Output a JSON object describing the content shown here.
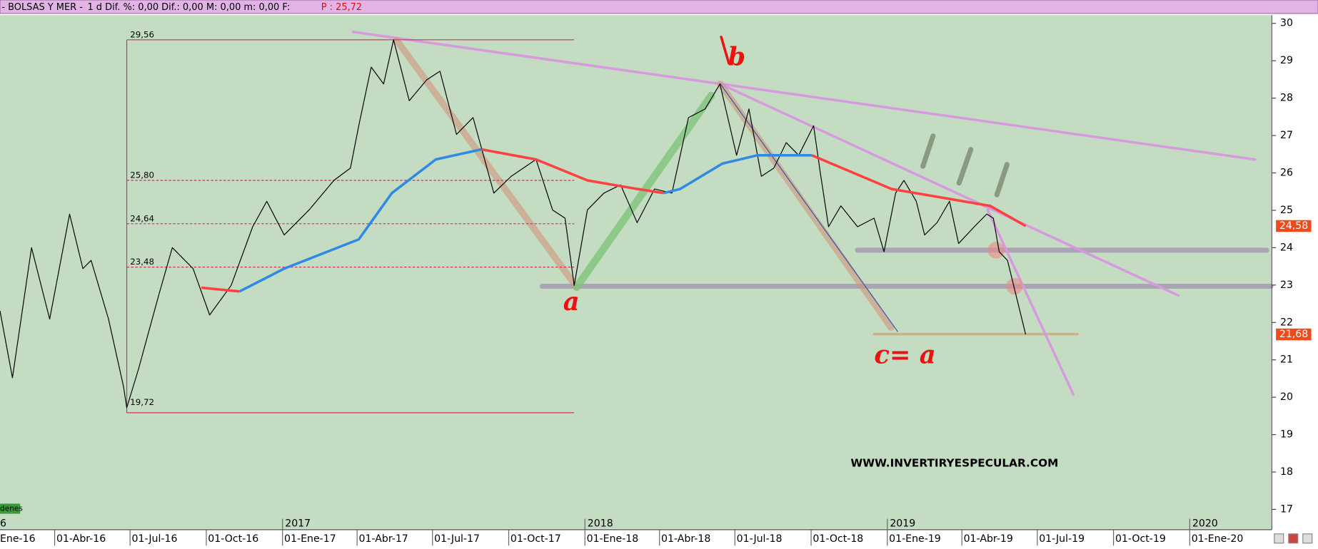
{
  "chart_data": {
    "type": "line",
    "title": "- BOLSAS Y MER -",
    "subtitle": "1 d Dif. %: 0,00 Dif.: 0,00 M: 0,00 m: 0,00 F:",
    "last_price": "P : 25,72",
    "xlim": [
      "2016-01-26",
      "2020-04-08"
    ],
    "ylim": [
      16.48,
      30.22
    ],
    "yticks": [
      17,
      18,
      19,
      20,
      21,
      22,
      23,
      24,
      25,
      26,
      27,
      28,
      29,
      30
    ],
    "xticks": [
      {
        "value": "2016-01-01",
        "label": "Ene-16"
      },
      {
        "value": "2016-04-01",
        "label": "01-Abr-16"
      },
      {
        "value": "2016-07-01",
        "label": "01-Jul-16"
      },
      {
        "value": "2016-10-01",
        "label": "01-Oct-16"
      },
      {
        "value": "2017-01-01",
        "label": "01-Ene-17"
      },
      {
        "value": "2017-04-01",
        "label": "01-Abr-17"
      },
      {
        "value": "2017-07-01",
        "label": "01-Jul-17"
      },
      {
        "value": "2017-10-01",
        "label": "01-Oct-17"
      },
      {
        "value": "2018-01-01",
        "label": "01-Ene-18"
      },
      {
        "value": "2018-04-01",
        "label": "01-Abr-18"
      },
      {
        "value": "2018-07-01",
        "label": "01-Jul-18"
      },
      {
        "value": "2018-10-01",
        "label": "01-Oct-18"
      },
      {
        "value": "2019-01-01",
        "label": "01-Ene-19"
      },
      {
        "value": "2019-04-01",
        "label": "01-Abr-19"
      },
      {
        "value": "2019-07-01",
        "label": "01-Jul-19"
      },
      {
        "value": "2019-10-01",
        "label": "01-Oct-19"
      },
      {
        "value": "2020-01-01",
        "label": "01-Ene-20"
      }
    ],
    "year_labels": [
      {
        "value": "2016-01-01",
        "label": "6"
      },
      {
        "value": "2017-01-01",
        "label": "2017"
      },
      {
        "value": "2018-01-01",
        "label": "2018"
      },
      {
        "value": "2019-01-01",
        "label": "2019"
      },
      {
        "value": "2020-01-01",
        "label": "2020"
      }
    ],
    "series": [
      {
        "color": "#000000",
        "x": [
          "2016-01-26",
          "2016-02-10",
          "2016-03-04",
          "2016-03-26",
          "2016-04-19",
          "2016-05-05",
          "2016-05-15",
          "2016-06-05",
          "2016-06-23",
          "2016-06-27",
          "2016-07-11",
          "2016-08-05",
          "2016-08-21",
          "2016-09-15",
          "2016-10-05",
          "2016-10-31",
          "2016-11-26",
          "2016-12-13",
          "2017-01-03",
          "2017-02-02",
          "2017-03-04",
          "2017-03-24",
          "2017-04-03",
          "2017-04-18",
          "2017-05-03",
          "2017-05-15",
          "2017-06-03",
          "2017-06-24",
          "2017-07-10",
          "2017-07-30",
          "2017-08-19",
          "2017-09-13",
          "2017-10-04",
          "2017-11-03",
          "2017-11-23",
          "2017-12-08",
          "2017-12-19",
          "2018-01-04",
          "2018-01-24",
          "2018-02-13",
          "2018-03-05",
          "2018-03-26",
          "2018-04-16",
          "2018-05-06",
          "2018-05-26",
          "2018-06-13",
          "2018-07-03",
          "2018-07-18",
          "2018-08-02",
          "2018-08-17",
          "2018-09-01",
          "2018-09-16",
          "2018-10-04",
          "2018-10-12",
          "2018-10-22",
          "2018-11-06",
          "2018-11-26",
          "2018-12-16",
          "2018-12-28",
          "2019-01-11",
          "2019-01-21",
          "2019-02-05",
          "2019-02-15",
          "2019-03-02",
          "2019-03-17",
          "2019-03-28",
          "2019-04-16",
          "2019-05-01",
          "2019-05-09",
          "2019-05-16",
          "2019-05-26",
          "2019-06-05",
          "2019-06-17"
        ],
        "values": [
          22.31,
          20.52,
          24.0,
          22.09,
          24.9,
          23.44,
          23.66,
          22.09,
          20.29,
          19.72,
          20.74,
          22.76,
          24.0,
          23.44,
          22.2,
          22.99,
          24.56,
          25.24,
          24.34,
          25.01,
          25.8,
          26.13,
          27.26,
          28.83,
          28.38,
          29.56,
          27.93,
          28.49,
          28.72,
          27.03,
          27.48,
          25.46,
          25.91,
          26.36,
          25.01,
          24.79,
          22.99,
          25.01,
          25.46,
          25.68,
          24.67,
          25.57,
          25.46,
          27.48,
          27.71,
          28.38,
          26.47,
          27.71,
          25.91,
          26.13,
          26.81,
          26.47,
          27.26,
          26.02,
          24.56,
          25.12,
          24.56,
          24.79,
          23.89,
          25.46,
          25.8,
          25.24,
          24.34,
          24.67,
          25.24,
          24.11,
          24.56,
          24.9,
          24.79,
          23.89,
          23.66,
          22.76,
          21.68
        ],
        "width": 1
      },
      {
        "color": "#ff4040",
        "x": [
          "2016-09-25",
          "2016-11-10",
          "2017-01-03",
          "2017-04-03",
          "2017-05-13",
          "2017-07-05",
          "2017-08-29",
          "2017-11-03",
          "2018-01-04",
          "2018-03-05",
          "2018-04-06",
          "2018-04-26",
          "2018-06-16",
          "2018-07-28",
          "2018-10-02",
          "2019-01-06",
          "2019-05-05",
          "2019-06-17"
        ],
        "values": [
          22.93,
          22.83,
          null,
          null,
          null,
          null,
          26.63,
          26.36,
          25.8,
          25.57,
          25.46,
          null,
          null,
          null,
          26.47,
          25.57,
          25.12,
          24.58
        ],
        "width": 3
      },
      {
        "color": "#2f8ae6",
        "x": [
          "2016-09-25",
          "2016-11-10",
          "2017-01-03",
          "2017-04-03",
          "2017-05-13",
          "2017-07-05",
          "2017-08-29",
          "2017-11-03",
          "2018-01-04",
          "2018-03-05",
          "2018-04-06",
          "2018-04-26",
          "2018-06-16",
          "2018-07-28",
          "2018-10-02",
          "2019-01-06",
          "2019-05-05",
          "2019-06-17"
        ],
        "values": [
          null,
          22.83,
          23.44,
          24.22,
          25.46,
          26.36,
          26.63,
          null,
          null,
          null,
          25.46,
          25.57,
          26.25,
          26.47,
          26.47,
          null,
          null,
          null
        ],
        "width": 3
      }
    ],
    "fib_range": [
      "2016-06-27",
      "2017-12-19"
    ],
    "fib_levels": [
      {
        "value": 29.56,
        "label": "29,56"
      },
      {
        "value": 25.8,
        "label": "25,80"
      },
      {
        "value": 24.64,
        "label": "24,64"
      },
      {
        "value": 23.48,
        "label": "23,48"
      },
      {
        "value": 19.72,
        "label": "19,72"
      }
    ],
    "last_values": [
      {
        "value": 24.58,
        "label": "24,58",
        "color": "#f04a1a"
      },
      {
        "value": 21.68,
        "label": "21,68",
        "color": "#f04a1a"
      }
    ],
    "annotations": [
      "b",
      "a",
      "c= a",
      "WWW.INVERTIRYESPECULAR.COM",
      "denes"
    ]
  }
}
